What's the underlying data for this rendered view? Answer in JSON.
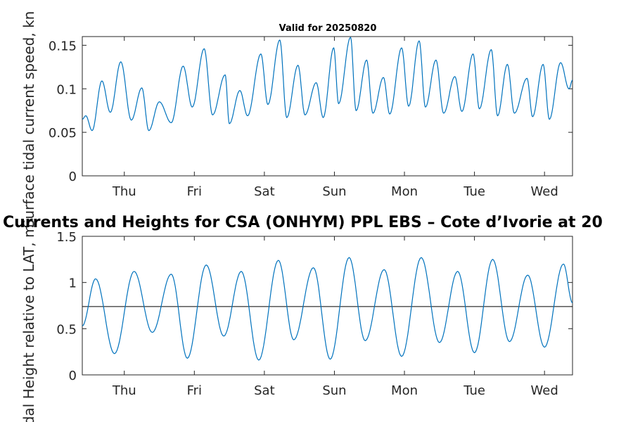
{
  "chart_data": [
    {
      "type": "line",
      "title": "Valid for 20250820",
      "ylabel": "Surface tidal current speed, kn",
      "ylim": [
        0,
        0.16
      ],
      "xlim": [
        -0.6,
        6.4
      ],
      "x_ticks": [
        {
          "value": 0,
          "label": "Thu"
        },
        {
          "value": 1,
          "label": "Fri"
        },
        {
          "value": 2,
          "label": "Sat"
        },
        {
          "value": 3,
          "label": "Sun"
        },
        {
          "value": 4,
          "label": "Mon"
        },
        {
          "value": 5,
          "label": "Tue"
        },
        {
          "value": 6,
          "label": "Wed"
        }
      ],
      "y_ticks": [
        {
          "value": 0,
          "label": "0"
        },
        {
          "value": 0.05,
          "label": "0.05"
        },
        {
          "value": 0.1,
          "label": "0.1"
        },
        {
          "value": 0.15,
          "label": "0.15"
        }
      ],
      "series": [
        {
          "color": "#0072bd",
          "x": [
            -0.6,
            -0.55,
            -0.46,
            -0.32,
            -0.2,
            -0.05,
            0.1,
            0.25,
            0.35,
            0.5,
            0.67,
            0.84,
            0.97,
            1.14,
            1.26,
            1.44,
            1.5,
            1.65,
            1.76,
            1.95,
            2.05,
            2.22,
            2.32,
            2.48,
            2.58,
            2.74,
            2.84,
            2.99,
            3.06,
            3.23,
            3.31,
            3.46,
            3.55,
            3.7,
            3.79,
            3.96,
            4.06,
            4.21,
            4.3,
            4.45,
            4.56,
            4.72,
            4.82,
            4.98,
            5.07,
            5.24,
            5.33,
            5.47,
            5.57,
            5.75,
            5.83,
            5.98,
            6.07,
            6.23,
            6.35,
            6.4
          ],
          "y": [
            0.065,
            0.069,
            0.052,
            0.109,
            0.073,
            0.131,
            0.064,
            0.101,
            0.052,
            0.085,
            0.061,
            0.126,
            0.079,
            0.146,
            0.07,
            0.116,
            0.06,
            0.098,
            0.069,
            0.14,
            0.082,
            0.156,
            0.067,
            0.127,
            0.07,
            0.107,
            0.067,
            0.147,
            0.083,
            0.159,
            0.075,
            0.133,
            0.072,
            0.113,
            0.071,
            0.147,
            0.08,
            0.155,
            0.079,
            0.133,
            0.072,
            0.114,
            0.074,
            0.14,
            0.077,
            0.145,
            0.069,
            0.128,
            0.072,
            0.112,
            0.068,
            0.128,
            0.065,
            0.13,
            0.1,
            0.11
          ]
        }
      ]
    },
    {
      "type": "line",
      "title": "Currents and Heights for CSA (ONHYM) PPL EBS  – Cote d’Ivorie at 20",
      "ylabel": "Tidal Height relative to LAT, m",
      "ylim": [
        0,
        1.5
      ],
      "xlim": [
        -0.6,
        6.4
      ],
      "reference_line": 0.74,
      "x_ticks": [
        {
          "value": 0,
          "label": "Thu"
        },
        {
          "value": 1,
          "label": "Fri"
        },
        {
          "value": 2,
          "label": "Sat"
        },
        {
          "value": 3,
          "label": "Sun"
        },
        {
          "value": 4,
          "label": "Mon"
        },
        {
          "value": 5,
          "label": "Tue"
        },
        {
          "value": 6,
          "label": "Wed"
        }
      ],
      "y_ticks": [
        {
          "value": 0,
          "label": "0"
        },
        {
          "value": 0.5,
          "label": "0.5"
        },
        {
          "value": 1,
          "label": "1"
        },
        {
          "value": 1.5,
          "label": "1.5"
        }
      ],
      "series": [
        {
          "color": "#0072bd",
          "x": [
            -0.6,
            -0.41,
            -0.14,
            0.14,
            0.4,
            0.67,
            0.9,
            1.17,
            1.42,
            1.67,
            1.92,
            2.2,
            2.42,
            2.7,
            2.94,
            3.21,
            3.44,
            3.71,
            3.96,
            4.24,
            4.5,
            4.76,
            5.0,
            5.26,
            5.5,
            5.76,
            6.0,
            6.27,
            6.4
          ],
          "y": [
            0.53,
            1.04,
            0.23,
            1.12,
            0.46,
            1.09,
            0.18,
            1.19,
            0.42,
            1.12,
            0.16,
            1.24,
            0.38,
            1.16,
            0.17,
            1.27,
            0.37,
            1.14,
            0.2,
            1.27,
            0.35,
            1.12,
            0.24,
            1.25,
            0.36,
            1.08,
            0.3,
            1.2,
            0.78
          ]
        }
      ]
    }
  ]
}
